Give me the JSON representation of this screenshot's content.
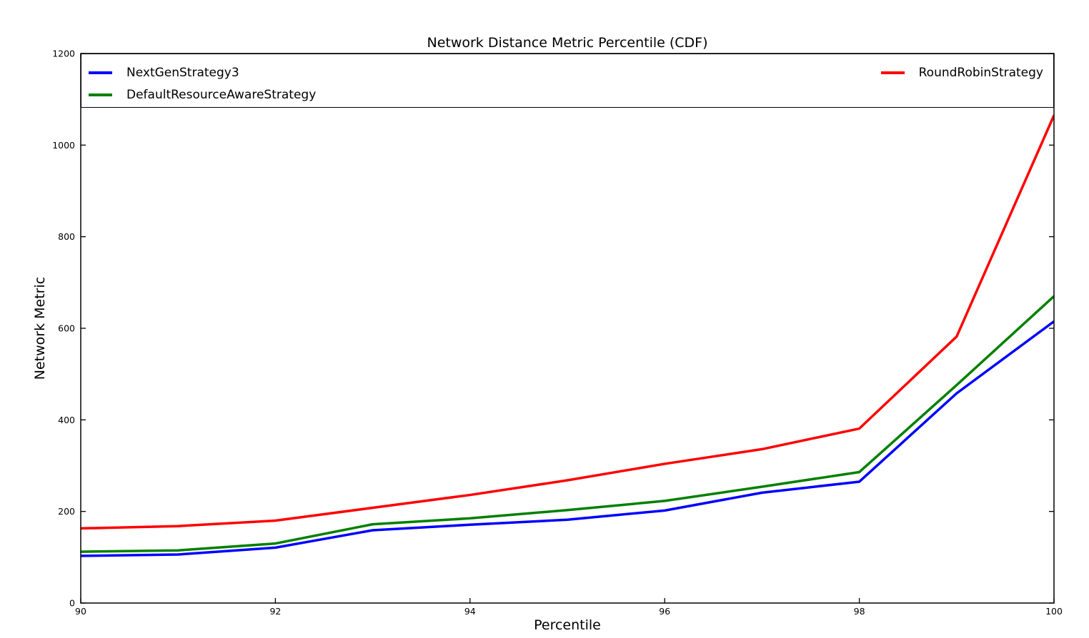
{
  "figure": {
    "background": "#ffffff",
    "frame_color": "#000000"
  },
  "chart_data": {
    "type": "line",
    "title": "Network Distance Metric Percentile (CDF)",
    "xlabel": "Percentile",
    "ylabel": "Network Metric",
    "xlim": [
      90,
      100
    ],
    "ylim": [
      0,
      1200
    ],
    "x_ticks": [
      90,
      92,
      94,
      96,
      98,
      100
    ],
    "y_ticks": [
      0,
      200,
      400,
      600,
      800,
      1000,
      1200
    ],
    "grid": false,
    "tick_direction": "in",
    "legend_position": "top inside, spanning full plot width, 2 columns",
    "x": [
      90,
      91,
      92,
      93,
      94,
      95,
      96,
      97,
      98,
      99,
      100
    ],
    "series": [
      {
        "name": "NextGenStrategy3",
        "color": "#0000ff",
        "values": [
          103,
          106,
          121,
          159,
          171,
          182,
          202,
          241,
          265,
          458,
          615
        ]
      },
      {
        "name": "DefaultResourceAwareStrategy",
        "color": "#008000",
        "values": [
          112,
          115,
          130,
          172,
          185,
          203,
          223,
          254,
          286,
          476,
          670
        ]
      },
      {
        "name": "RoundRobinStrategy",
        "color": "#ff0000",
        "values": [
          163,
          168,
          180,
          208,
          236,
          268,
          304,
          336,
          381,
          582,
          1065
        ]
      }
    ]
  }
}
